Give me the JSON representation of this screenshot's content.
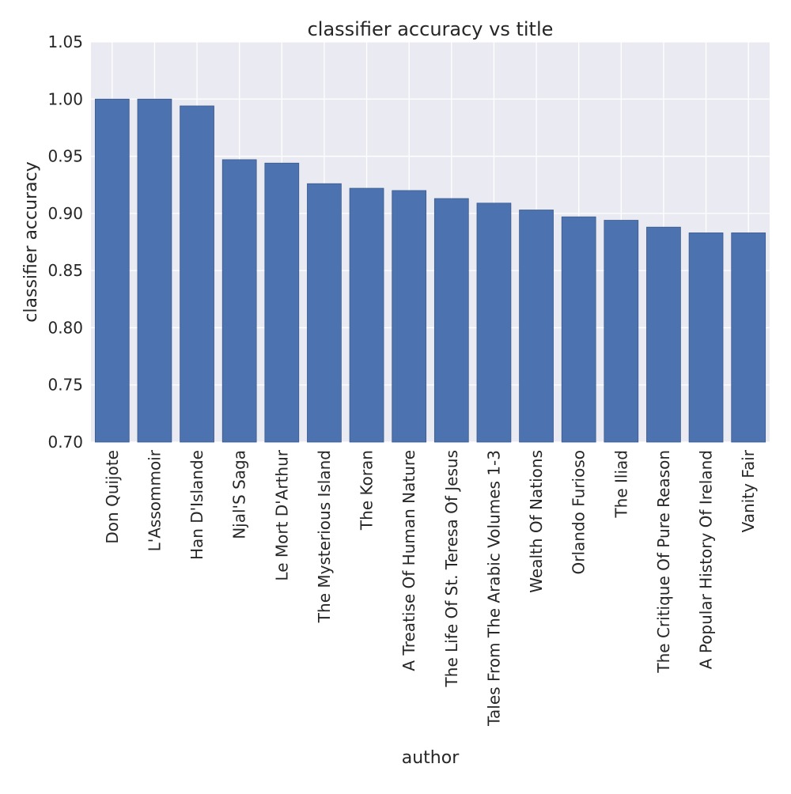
{
  "chart_data": {
    "type": "bar",
    "title": "classifier accuracy vs title",
    "xlabel": "author",
    "ylabel": "classifier accuracy",
    "ylim": [
      0.7,
      1.05
    ],
    "yticks": [
      "0.70",
      "0.75",
      "0.80",
      "0.85",
      "0.90",
      "0.95",
      "1.00",
      "1.05"
    ],
    "grid": true,
    "categories": [
      "Don Quijote",
      "L'Assommoir",
      "Han D'Islande",
      "Njal'S Saga",
      "Le Mort D'Arthur",
      "The Mysterious Island",
      "The Koran",
      "A Treatise Of Human Nature",
      "The Life Of St. Teresa Of Jesus",
      "Tales From The Arabic Volumes 1-3",
      "Wealth Of Nations",
      "Orlando Furioso",
      "The Iliad",
      "The Critique Of Pure Reason",
      "A Popular History Of Ireland",
      "Vanity Fair"
    ],
    "values": [
      1.0,
      1.0,
      0.994,
      0.947,
      0.944,
      0.926,
      0.922,
      0.92,
      0.913,
      0.909,
      0.903,
      0.897,
      0.894,
      0.888,
      0.883,
      0.883
    ],
    "colors": {
      "bar": "#4c72b0",
      "bar_edge": "#3a5a8c",
      "plot_background": "#eaeaf2",
      "grid": "#ffffff",
      "text": "#262626"
    }
  }
}
